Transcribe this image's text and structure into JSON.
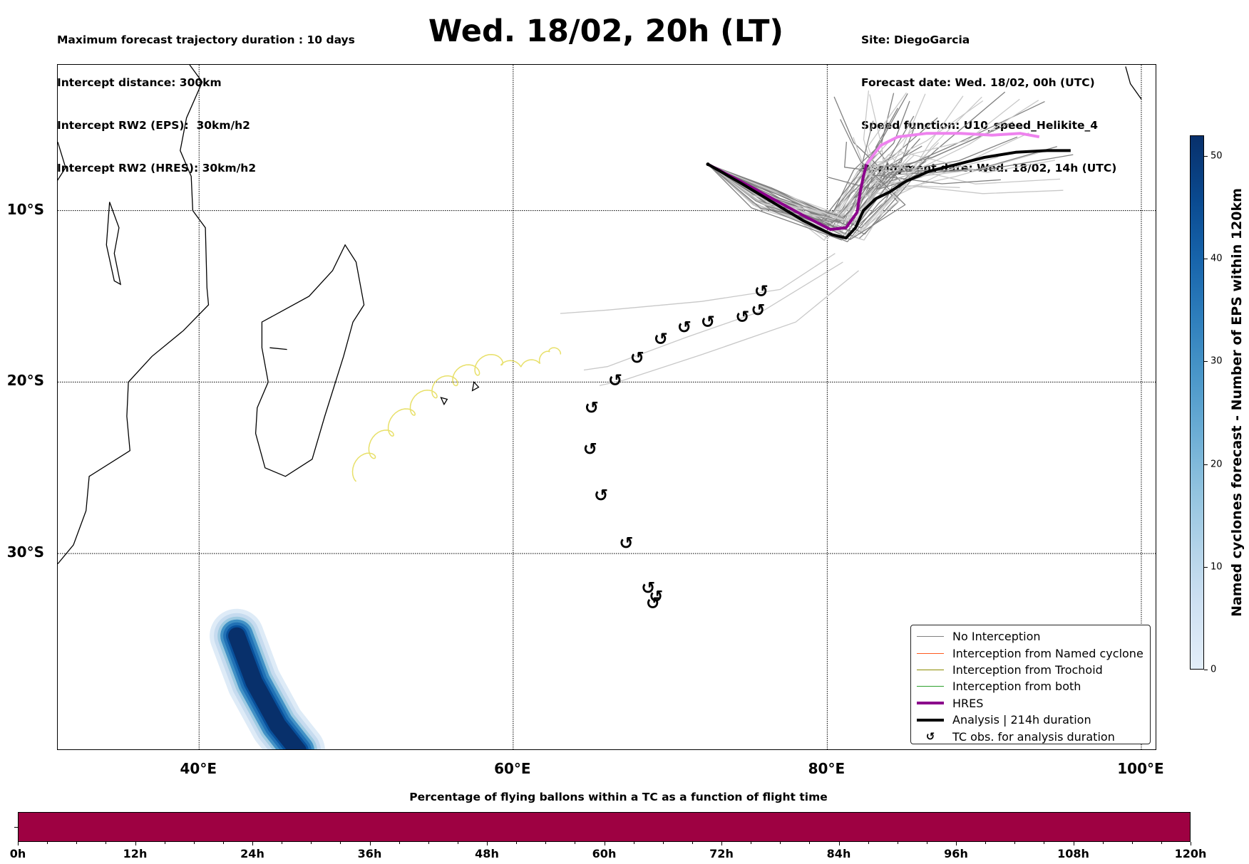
{
  "header": {
    "left_lines": [
      "Maximum forecast trajectory duration : 10 days",
      "Intercept distance: 300km",
      "Intercept RW2 (EPS):  30km/h2",
      "Intercept RW2 (HRES): 30km/h2"
    ],
    "title": "Wed. 18/02, 20h (LT)",
    "right_lines": [
      "Site: DiegoGarcia",
      "Forecast date: Wed. 18/02, 00h (UTC)",
      "Speed function: U10_speed_Helikite_4",
      "Deployment date: Wed. 18/02, 14h (UTC)"
    ]
  },
  "map": {
    "lon_range": [
      31,
      101
    ],
    "lat_range": [
      -1.5,
      -41.5
    ],
    "lat_ticks": [
      {
        "value": -10,
        "label": "10°S"
      },
      {
        "value": -20,
        "label": "20°S"
      },
      {
        "value": -30,
        "label": "30°S"
      }
    ],
    "lon_ticks": [
      {
        "value": 40,
        "label": "40°E"
      },
      {
        "value": 60,
        "label": "60°E"
      },
      {
        "value": 80,
        "label": "80°E"
      },
      {
        "value": 100,
        "label": "100°E"
      }
    ],
    "colors": {
      "no_interception": "#808080",
      "no_interception_light": "#c8c8c8",
      "named_cyclone": "#ff5a1f",
      "trochoid": "#8b8b00",
      "both": "#2ca02c",
      "hres": "#8b008b",
      "hres_late": "#ee82ee",
      "analysis": "#000000",
      "trochoid_track": "#e8e06a"
    },
    "launch_point": [
      72.4,
      -7.3
    ],
    "hres_track": [
      [
        72.4,
        -7.3
      ],
      [
        74.5,
        -8.3
      ],
      [
        76.5,
        -9.3
      ],
      [
        78.5,
        -10.3
      ],
      [
        80.2,
        -11.1
      ],
      [
        81.2,
        -11.0
      ],
      [
        81.9,
        -10.1
      ],
      [
        82.1,
        -8.9
      ],
      [
        82.3,
        -8.0
      ],
      [
        82.5,
        -7.3
      ],
      [
        83.4,
        -6.2
      ],
      [
        84.5,
        -5.7
      ],
      [
        86.3,
        -5.5
      ],
      [
        88.5,
        -5.5
      ],
      [
        90.5,
        -5.6
      ],
      [
        92.3,
        -5.5
      ],
      [
        93.5,
        -5.7
      ]
    ],
    "analysis_track": [
      [
        72.4,
        -7.3
      ],
      [
        74.5,
        -8.4
      ],
      [
        76.5,
        -9.5
      ],
      [
        78.5,
        -10.6
      ],
      [
        80.3,
        -11.4
      ],
      [
        81.2,
        -11.6
      ],
      [
        81.8,
        -11.0
      ],
      [
        82.3,
        -10.0
      ],
      [
        83.1,
        -9.3
      ],
      [
        84.0,
        -8.9
      ],
      [
        85.0,
        -8.3
      ],
      [
        86.5,
        -7.7
      ],
      [
        88.3,
        -7.3
      ],
      [
        90.0,
        -6.9
      ],
      [
        92.0,
        -6.6
      ],
      [
        94.0,
        -6.5
      ],
      [
        95.5,
        -6.5
      ]
    ],
    "trochoid_track": [
      [
        50.0,
        -25.8
      ],
      [
        51.0,
        -24.4
      ],
      [
        52.2,
        -23.1
      ],
      [
        53.6,
        -21.9
      ],
      [
        55.0,
        -20.9
      ],
      [
        56.3,
        -20.2
      ],
      [
        57.7,
        -19.6
      ],
      [
        59.2,
        -19.0
      ],
      [
        60.5,
        -19.1
      ],
      [
        61.7,
        -18.9
      ],
      [
        62.3,
        -18.2
      ],
      [
        63.0,
        -18.4
      ]
    ],
    "tc_obs": [
      [
        75.8,
        -14.7
      ],
      [
        75.6,
        -15.8
      ],
      [
        74.6,
        -16.2
      ],
      [
        72.4,
        -16.5
      ],
      [
        70.9,
        -16.8
      ],
      [
        69.4,
        -17.5
      ],
      [
        67.9,
        -18.6
      ],
      [
        66.5,
        -19.9
      ],
      [
        65.0,
        -21.5
      ],
      [
        64.9,
        -23.9
      ],
      [
        65.6,
        -26.6
      ],
      [
        67.2,
        -29.4
      ],
      [
        68.6,
        -32.0
      ],
      [
        69.1,
        -32.5
      ],
      [
        68.9,
        -32.9
      ]
    ],
    "tc_glyph": "↺",
    "eps_density_area": {
      "label": "named cyclone forecast density",
      "center_path": [
        [
          42.4,
          -34.8
        ],
        [
          43.5,
          -37.5
        ],
        [
          45.0,
          -40.0
        ],
        [
          46.3,
          -41.5
        ]
      ],
      "max_value": 52
    }
  },
  "legend": {
    "items": [
      {
        "label": "No Interception",
        "type": "line",
        "color": "#808080"
      },
      {
        "label": "Interception from Named cyclone",
        "type": "line",
        "color": "#ff5a1f"
      },
      {
        "label": "Interception from Trochoid",
        "type": "line",
        "color": "#8b8b00"
      },
      {
        "label": "Interception from both",
        "type": "line",
        "color": "#2ca02c"
      },
      {
        "label": "HRES",
        "type": "thick",
        "color": "#8b008b"
      },
      {
        "label": "Analysis | 214h duration",
        "type": "thick",
        "color": "#000000"
      },
      {
        "label": "TC obs. for analysis duration",
        "type": "symbol",
        "symbol": "↺"
      }
    ]
  },
  "colorbar": {
    "title": "Named cyclones forecast - Number of EPS within 120km",
    "range": [
      0,
      52
    ],
    "ticks": [
      "0",
      "10",
      "20",
      "30",
      "40",
      "50"
    ],
    "tick_values": [
      0,
      10,
      20,
      30,
      40,
      50
    ]
  },
  "timeline": {
    "title": "Percentage of flying ballons within a TC as a function of flight time",
    "range_hours": [
      0,
      120
    ],
    "fill_color": "#9e0142",
    "ticks": [
      "0h",
      "12h",
      "24h",
      "36h",
      "48h",
      "60h",
      "72h",
      "84h",
      "96h",
      "108h",
      "120h"
    ],
    "tick_values": [
      0,
      12,
      24,
      36,
      48,
      60,
      72,
      84,
      96,
      108,
      120
    ]
  }
}
